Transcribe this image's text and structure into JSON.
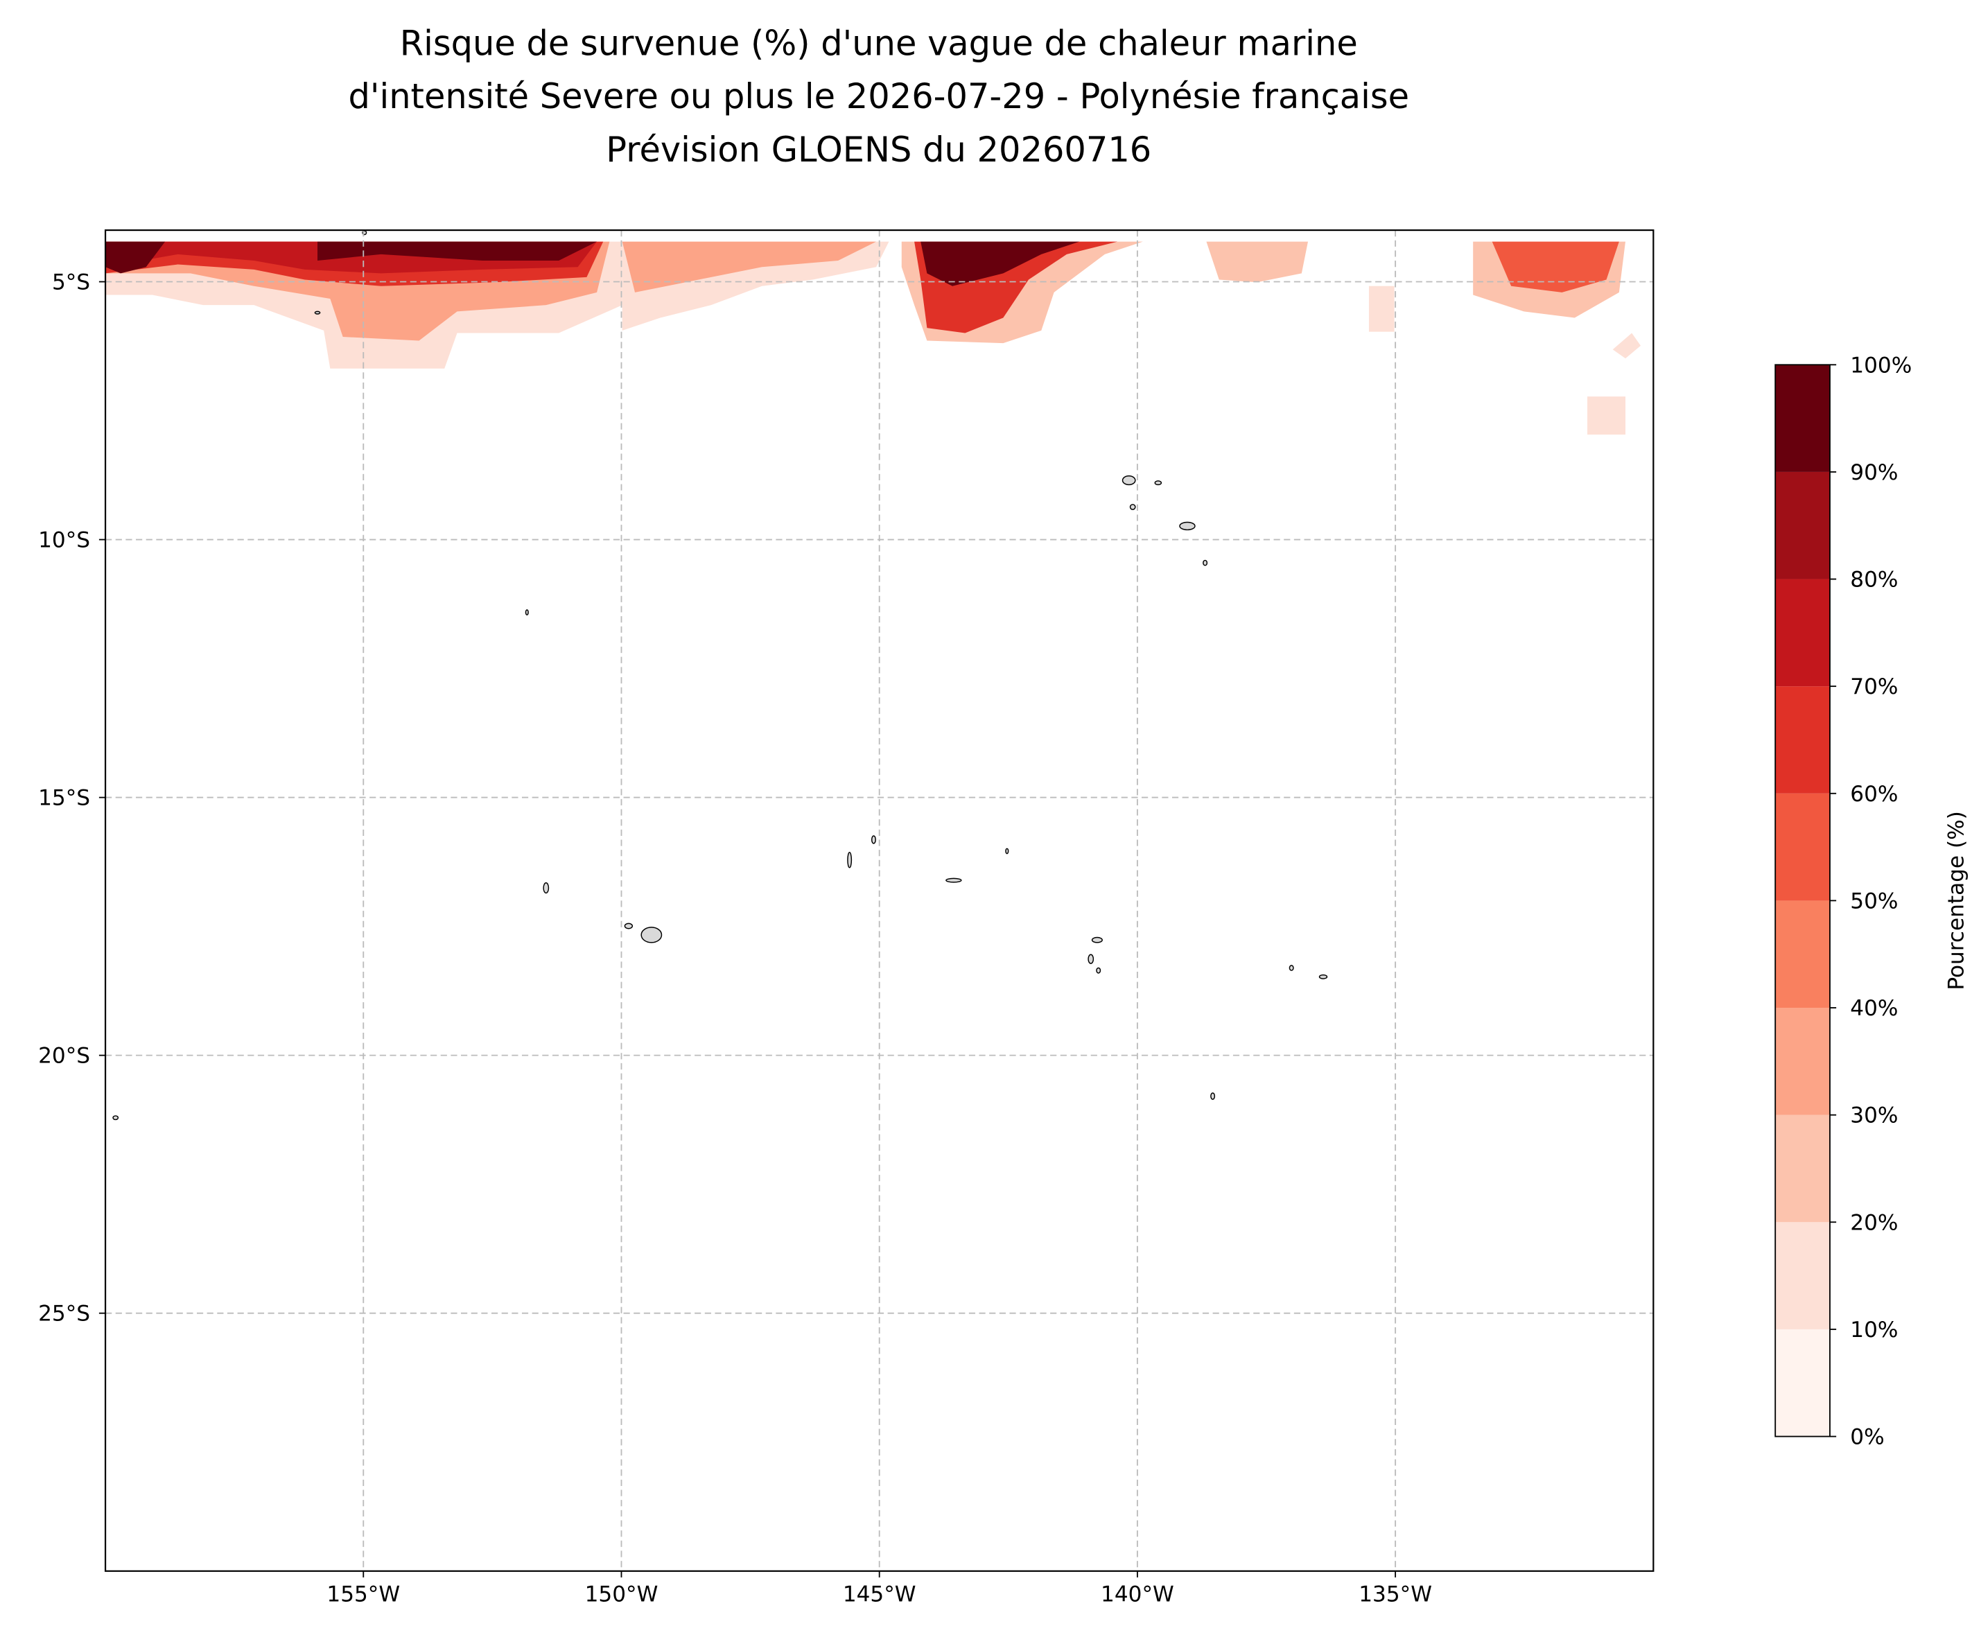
{
  "chart_data": {
    "type": "contour-map",
    "title": [
      "Risque de survenue (%) d'une vague de chaleur marine",
      "d'intensité Severe ou plus le 2026-07-29 - Polynésie française",
      "Prévision GLOENS du 20260716"
    ],
    "xlim": [
      -160,
      -130
    ],
    "ylim": [
      -30,
      -4
    ],
    "xticks": [
      {
        "value": -155,
        "label": "155°W"
      },
      {
        "value": -150,
        "label": "150°W"
      },
      {
        "value": -145,
        "label": "145°W"
      },
      {
        "value": -140,
        "label": "140°W"
      },
      {
        "value": -135,
        "label": "135°W"
      }
    ],
    "yticks": [
      {
        "value": -5,
        "label": "5°S"
      },
      {
        "value": -10,
        "label": "10°S"
      },
      {
        "value": -15,
        "label": "15°S"
      },
      {
        "value": -20,
        "label": "20°S"
      },
      {
        "value": -25,
        "label": "25°S"
      }
    ],
    "grid": true,
    "colorbar": {
      "label": "Pourcentage (%)",
      "ticks": [
        {
          "value": 0,
          "label": "0%"
        },
        {
          "value": 10,
          "label": "10%"
        },
        {
          "value": 20,
          "label": "20%"
        },
        {
          "value": 30,
          "label": "30%"
        },
        {
          "value": 40,
          "label": "40%"
        },
        {
          "value": 50,
          "label": "50%"
        },
        {
          "value": 60,
          "label": "60%"
        },
        {
          "value": 70,
          "label": "70%"
        },
        {
          "value": 80,
          "label": "80%"
        },
        {
          "value": 90,
          "label": "90%"
        },
        {
          "value": 100,
          "label": "100%"
        }
      ],
      "colors": [
        "#fff3ee",
        "#fde0d6",
        "#fcc3ad",
        "#fca487",
        "#f9805f",
        "#f1583f",
        "#e03127",
        "#c3171c",
        "#9f0f17",
        "#67000d"
      ]
    }
  }
}
